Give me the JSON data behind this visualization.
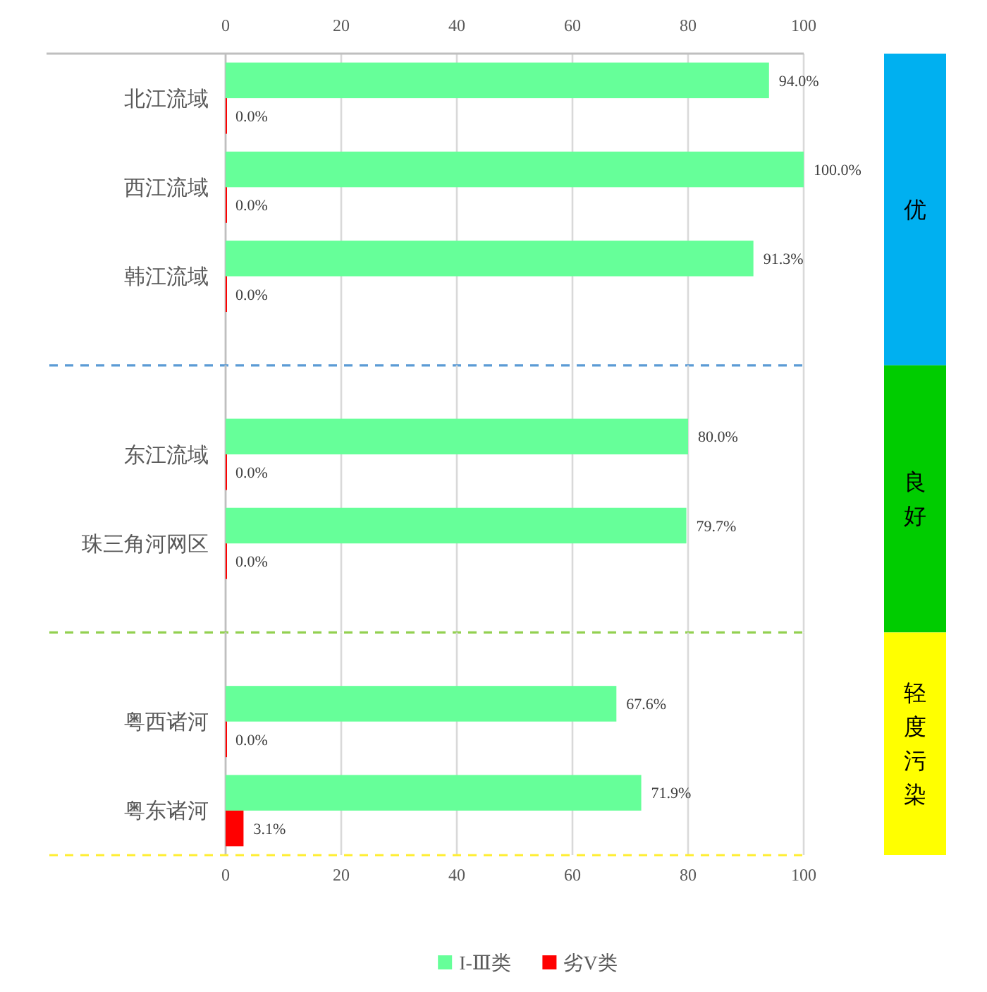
{
  "chart_data": [
    {
      "type": "bar",
      "orientation": "horizontal",
      "annotations": [
        "优"
      ],
      "categories": [
        "北江流域",
        "西江流域",
        "韩江流域"
      ],
      "series": [
        {
          "color": "#66ff99",
          "axis": "x2",
          "values": [
            94.0,
            100.0,
            91.3
          ],
          "value_labels": [
            "94.0%",
            "100.0%",
            "91.3%"
          ]
        },
        {
          "color": "#ff0000",
          "axis": "x2",
          "values": [
            0,
            0,
            0
          ],
          "value_labels": [
            "0.0%",
            "0.0%",
            "0.0%"
          ]
        }
      ],
      "x2lim": [
        0,
        100
      ],
      "x2ticks": [
        0,
        20,
        40,
        60,
        80,
        100
      ],
      "grid": "x"
    },
    {
      "type": "bar",
      "orientation": "horizontal",
      "annotations": [
        "良好"
      ],
      "categories": [
        "东江流域",
        "珠三角河网区"
      ],
      "series": [
        {
          "color": "#66ff99",
          "values": [
            80.0,
            79.7
          ],
          "value_labels": [
            "80.0%",
            "79.7%"
          ]
        },
        {
          "color": "#ff0000",
          "values": [
            0,
            0
          ],
          "value_labels": [
            "0.0%",
            "0.0%"
          ]
        }
      ],
      "xlim": [
        0,
        100
      ],
      "xticks": [
        0,
        20,
        40,
        60,
        80,
        100
      ],
      "tick_labels": "y",
      "grid": "x"
    },
    {
      "type": "bar",
      "orientation": "horizontal",
      "annotations": [
        "轻度污染"
      ],
      "categories": [
        "粤西诸河",
        "粤东诸河"
      ],
      "series": [
        {
          "name": "I-Ⅲ类",
          "color": "#66ff99",
          "values": [
            67.6,
            71.9
          ],
          "value_labels": [
            "67.6%",
            "71.9%"
          ]
        },
        {
          "name": "劣V类",
          "color": "#ff0000",
          "values": [
            0,
            3.1
          ],
          "value_labels": [
            "0.0%",
            "3.1%"
          ]
        }
      ],
      "xlim": [
        0,
        100
      ],
      "xticks": [
        0,
        20,
        40,
        60,
        80,
        100
      ],
      "grid": "x",
      "legend": "bottom"
    }
  ]
}
